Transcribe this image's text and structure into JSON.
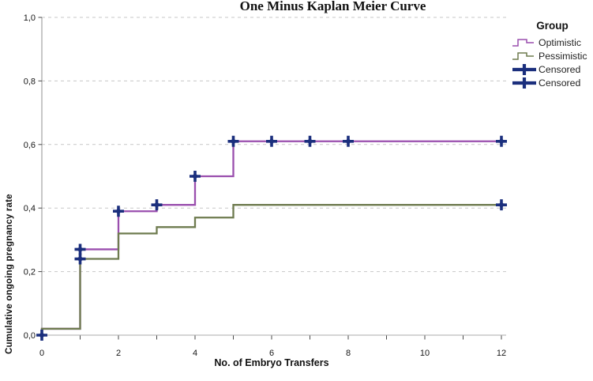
{
  "chart_data": {
    "type": "line",
    "subtype": "kaplan-meier-step",
    "title": "One Minus Kaplan Meier Curve",
    "xlabel": "No. of Embryo Transfers",
    "ylabel": "Cumulative ongoing pregnancy rate",
    "xlim": [
      0,
      12
    ],
    "ylim": [
      0.0,
      1.0
    ],
    "grid": "horizontal-dashed",
    "x_ticks": [
      0,
      1,
      2,
      3,
      4,
      5,
      6,
      7,
      8,
      9,
      10,
      11,
      12
    ],
    "x_labels": [
      {
        "v": 0,
        "t": "0"
      },
      {
        "v": 2,
        "t": "2"
      },
      {
        "v": 4,
        "t": "4"
      },
      {
        "v": 6,
        "t": "6"
      },
      {
        "v": 8,
        "t": "8"
      },
      {
        "v": 10,
        "t": "10"
      },
      {
        "v": 12,
        "t": "12"
      }
    ],
    "y_ticks": [
      {
        "v": 0.0,
        "t": "0,0"
      },
      {
        "v": 0.2,
        "t": "0,2"
      },
      {
        "v": 0.4,
        "t": "0,4"
      },
      {
        "v": 0.6,
        "t": "0,6"
      },
      {
        "v": 0.8,
        "t": "0,8"
      },
      {
        "v": 1.0,
        "t": "1,0"
      }
    ],
    "series": [
      {
        "name": "Optimistic",
        "color": "#9a4fae",
        "start": [
          0,
          0
        ],
        "steps": [
          [
            0,
            0.02
          ],
          [
            1,
            0.27
          ],
          [
            2,
            0.39
          ],
          [
            3,
            0.41
          ],
          [
            4,
            0.5
          ],
          [
            5,
            0.61
          ]
        ],
        "end_x": 12,
        "censored": [
          [
            1,
            0.27
          ],
          [
            2,
            0.39
          ],
          [
            3,
            0.41
          ],
          [
            4,
            0.5
          ],
          [
            5,
            0.61
          ],
          [
            6,
            0.61
          ],
          [
            7,
            0.61
          ],
          [
            8,
            0.61
          ],
          [
            12,
            0.61
          ]
        ]
      },
      {
        "name": "Pessimistic",
        "color": "#6e7b4f",
        "start": [
          0,
          0
        ],
        "steps": [
          [
            0,
            0.02
          ],
          [
            1,
            0.24
          ],
          [
            2,
            0.32
          ],
          [
            3,
            0.34
          ],
          [
            4,
            0.37
          ],
          [
            5,
            0.41
          ]
        ],
        "end_x": 12,
        "censored": [
          [
            1,
            0.24
          ],
          [
            12,
            0.41
          ]
        ]
      }
    ],
    "censored_color": "#1b2f7d",
    "origin_censored": [
      0,
      0
    ],
    "legend": {
      "title": "Group",
      "entries": [
        {
          "label": "Optimistic",
          "type": "step",
          "color": "#9a4fae"
        },
        {
          "label": "Pessimistic",
          "type": "step",
          "color": "#6e7b4f"
        },
        {
          "label": "Censored",
          "type": "plus",
          "color": "#1b2f7d"
        },
        {
          "label": "Censored",
          "type": "plus",
          "color": "#1b2f7d"
        }
      ]
    }
  }
}
